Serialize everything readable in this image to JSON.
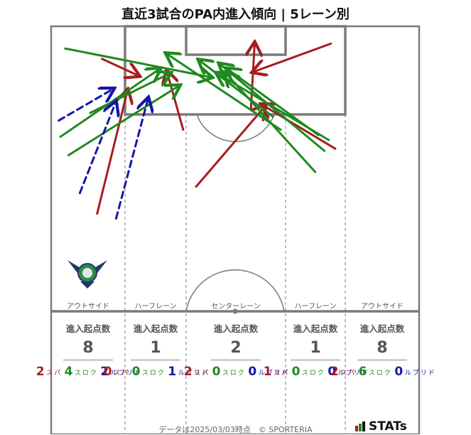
{
  "title": "直近3試合のPA内進入傾向 | 5レーン別",
  "colors": {
    "pass": "#a71d20",
    "cross": "#1e8a1e",
    "dribble": "#1616a8"
  },
  "lanes": [
    {
      "label": "アウトサイド",
      "header": "進入起点数",
      "total": "8",
      "pass": "2",
      "cross": "4",
      "dribble": "2"
    },
    {
      "label": "ハーフレーン",
      "header": "進入起点数",
      "total": "1",
      "pass": "0",
      "cross": "0",
      "dribble": "1"
    },
    {
      "label": "センターレーン",
      "header": "進入起点数",
      "total": "2",
      "pass": "2",
      "cross": "0",
      "dribble": "0"
    },
    {
      "label": "ハーフレーン",
      "header": "進入起点数",
      "total": "1",
      "pass": "1",
      "cross": "0",
      "dribble": "0"
    },
    {
      "label": "アウトサイド",
      "header": "進入起点数",
      "total": "8",
      "pass": "2",
      "cross": "6",
      "dribble": "0"
    }
  ],
  "type_labels": {
    "pass": "パス",
    "cross": "クロス",
    "dribble": "ドリブル"
  },
  "chart_data": {
    "type": "scatter",
    "title": "直近3試合のPA内進入傾向 | 5レーン別",
    "pitch_extent": {
      "x": [
        0,
        68
      ],
      "y": [
        0,
        52.5
      ]
    },
    "note_units": "x: metres from left touchline; y: metres from goal line",
    "arrows": [
      {
        "kind": "pass",
        "from": [
          9.4,
          6.0
        ],
        "to": [
          16.1,
          9.1
        ]
      },
      {
        "kind": "pass",
        "from": [
          8.5,
          34.6
        ],
        "to": [
          14.1,
          11.9
        ]
      },
      {
        "kind": "pass",
        "from": [
          24.4,
          19.1
        ],
        "to": [
          21.4,
          8.4
        ]
      },
      {
        "kind": "pass",
        "from": [
          26.8,
          29.6
        ],
        "to": [
          39.5,
          14.8
        ]
      },
      {
        "kind": "pass",
        "from": [
          36.9,
          15.5
        ],
        "to": [
          37.6,
          3.2
        ]
      },
      {
        "kind": "pass",
        "from": [
          51.7,
          3.2
        ],
        "to": [
          37.4,
          8.4
        ]
      },
      {
        "kind": "pass",
        "from": [
          52.5,
          22.6
        ],
        "to": [
          39.0,
          14.5
        ]
      },
      {
        "kind": "cross",
        "from": [
          2.6,
          4.1
        ],
        "to": [
          29.5,
          9.4
        ]
      },
      {
        "kind": "cross",
        "from": [
          1.7,
          20.4
        ],
        "to": [
          20.0,
          7.9
        ]
      },
      {
        "kind": "cross",
        "from": [
          3.2,
          23.8
        ],
        "to": [
          23.6,
          11.0
        ]
      },
      {
        "kind": "cross",
        "from": [
          7.2,
          16.0
        ],
        "to": [
          21.9,
          8.7
        ]
      },
      {
        "kind": "cross",
        "from": [
          51.3,
          21.0
        ],
        "to": [
          30.7,
          8.7
        ]
      },
      {
        "kind": "cross",
        "from": [
          49.4,
          20.1
        ],
        "to": [
          32.6,
          7.9
        ]
      },
      {
        "kind": "cross",
        "from": [
          50.5,
          23.0
        ],
        "to": [
          31.2,
          7.0
        ]
      },
      {
        "kind": "cross",
        "from": [
          48.8,
          26.9
        ],
        "to": [
          32.3,
          8.7
        ]
      },
      {
        "kind": "cross",
        "from": [
          42.4,
          19.1
        ],
        "to": [
          21.4,
          5.1
        ]
      },
      {
        "kind": "cross",
        "from": [
          41.0,
          16.7
        ],
        "to": [
          27.4,
          6.3
        ]
      },
      {
        "kind": "dribble",
        "from": [
          1.4,
          17.4
        ],
        "to": [
          11.4,
          11.6
        ]
      },
      {
        "kind": "dribble",
        "from": [
          5.3,
          30.8
        ],
        "to": [
          11.9,
          14.1
        ]
      },
      {
        "kind": "dribble",
        "from": [
          12.0,
          35.5
        ],
        "to": [
          17.9,
          13.4
        ]
      }
    ]
  },
  "footer": "データは2025/03/03時点　© SPORTERIA",
  "brand": "STATs"
}
